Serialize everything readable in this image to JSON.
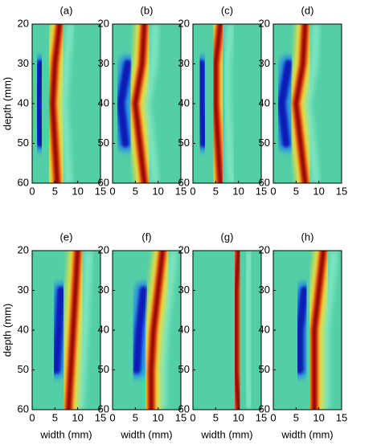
{
  "chart_data": [
    {
      "type": "heatmap",
      "title": "(a)",
      "xlim": [
        0,
        15
      ],
      "ylim": [
        20,
        60
      ],
      "y_reversed": true,
      "xticks": [
        0,
        5,
        10,
        15
      ],
      "yticks": [
        20,
        30,
        40,
        50,
        60
      ],
      "y_label": "depth (mm)"
    },
    {
      "type": "heatmap",
      "title": "(b)",
      "xlim": [
        0,
        15
      ],
      "ylim": [
        20,
        60
      ],
      "y_reversed": true,
      "xticks": [
        0,
        5,
        10,
        15
      ],
      "yticks": [
        20,
        30,
        40,
        50,
        60
      ]
    },
    {
      "type": "heatmap",
      "title": "(c)",
      "xlim": [
        0,
        15
      ],
      "ylim": [
        20,
        60
      ],
      "y_reversed": true,
      "xticks": [
        0,
        5,
        10,
        15
      ],
      "yticks": [
        20,
        30,
        40,
        50,
        60
      ]
    },
    {
      "type": "heatmap",
      "title": "(d)",
      "xlim": [
        0,
        15
      ],
      "ylim": [
        20,
        60
      ],
      "y_reversed": true,
      "xticks": [
        0,
        5,
        10,
        15
      ],
      "yticks": [
        20,
        30,
        40,
        50,
        60
      ]
    },
    {
      "type": "heatmap",
      "title": "(e)",
      "xlim": [
        0,
        15
      ],
      "ylim": [
        20,
        60
      ],
      "y_reversed": true,
      "xticks": [
        0,
        5,
        10,
        15
      ],
      "yticks": [
        20,
        30,
        40,
        50,
        60
      ],
      "x_label": "width (mm)",
      "y_label": "depth (mm)"
    },
    {
      "type": "heatmap",
      "title": "(f)",
      "xlim": [
        0,
        15
      ],
      "ylim": [
        20,
        60
      ],
      "y_reversed": true,
      "xticks": [
        0,
        5,
        10,
        15
      ],
      "yticks": [
        20,
        30,
        40,
        50,
        60
      ],
      "x_label": "width (mm)"
    },
    {
      "type": "heatmap",
      "title": "(g)",
      "xlim": [
        0,
        15
      ],
      "ylim": [
        20,
        60
      ],
      "y_reversed": true,
      "xticks": [
        0,
        5,
        10,
        15
      ],
      "yticks": [
        20,
        30,
        40,
        50,
        60
      ],
      "x_label": "width (mm)"
    },
    {
      "type": "heatmap",
      "title": "(h)",
      "xlim": [
        0,
        15
      ],
      "ylim": [
        20,
        60
      ],
      "y_reversed": true,
      "xticks": [
        0,
        5,
        10,
        15
      ],
      "yticks": [
        20,
        30,
        40,
        50,
        60
      ],
      "x_label": "width (mm)"
    }
  ]
}
